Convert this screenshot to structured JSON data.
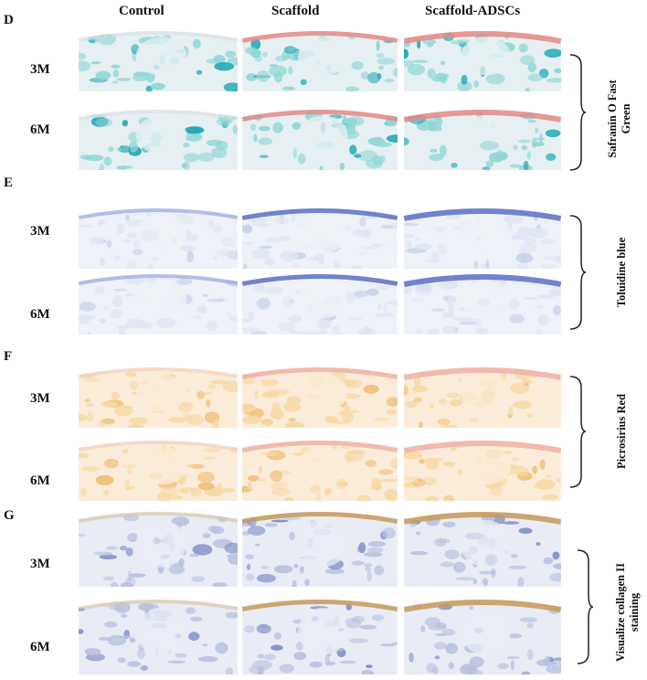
{
  "columns": [
    "Control",
    "Scaffold",
    "Scaffold-ADSCs"
  ],
  "panels": [
    {
      "letter": "D",
      "stain": "Safranin O Fast Green",
      "stain_lines": [
        "Safranin O Fast",
        "Green"
      ],
      "times": [
        "3M",
        "6M"
      ],
      "colors": {
        "base": "#e6f0f2",
        "bone": "#8fd6d6",
        "bone_dark": "#1fa7b5",
        "cap": "#e48a86",
        "cap2": "#d9dfe2"
      }
    },
    {
      "letter": "E",
      "stain": "Toluidine blue",
      "stain_lines": [
        "Toluidine blue"
      ],
      "times": [
        "3M",
        "6M"
      ],
      "colors": {
        "base": "#eef1f7",
        "bone": "#dfe5f2",
        "bone_dark": "#c7d2ea",
        "cap": "#5b6fc7",
        "cap2": "#8d9be0"
      }
    },
    {
      "letter": "F",
      "stain": "Picrosirius Red",
      "stain_lines": [
        "Picrosirius Red"
      ],
      "times": [
        "3M",
        "6M"
      ],
      "colors": {
        "base": "#fbecd9",
        "bone": "#f7d9a6",
        "bone_dark": "#efc07c",
        "cap": "#efb2a4",
        "cap2": "#f4cdbf"
      }
    },
    {
      "letter": "G",
      "stain": "Visualize collagen II staining",
      "stain_lines": [
        "Visualize collagen II",
        "staining"
      ],
      "times": [
        "3M",
        "6M"
      ],
      "colors": {
        "base": "#e9ecf5",
        "bone": "#b9c1e0",
        "bone_dark": "#7f8cc2",
        "cap": "#c79a5a",
        "cap2": "#d9c3a3"
      }
    }
  ]
}
